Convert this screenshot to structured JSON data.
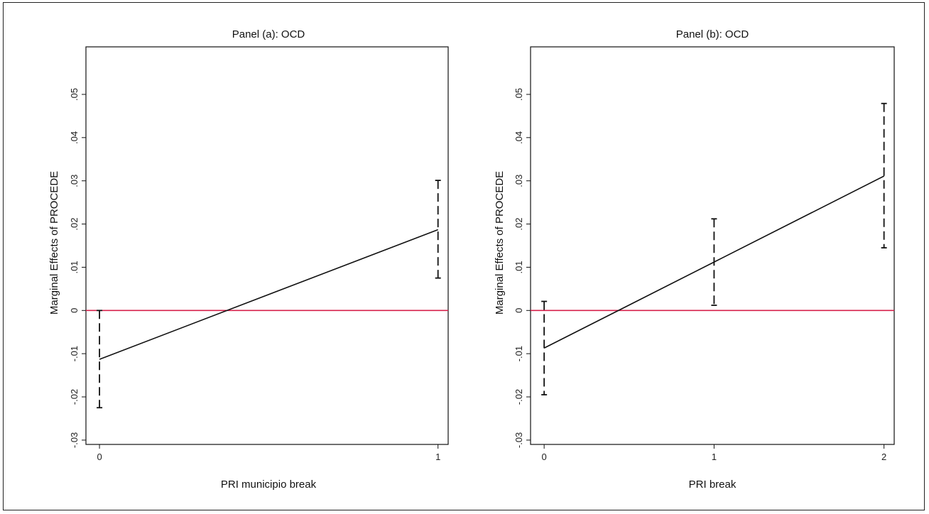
{
  "chart_data": [
    {
      "type": "line",
      "title": "Panel (a): OCD",
      "xlabel": "PRI municipio break",
      "ylabel": "Marginal Effects of PROCEDE",
      "x": [
        0,
        1
      ],
      "x_ticks": [
        "0",
        "1"
      ],
      "xlim": [
        -0.04,
        1.03
      ],
      "ylim": [
        -0.031,
        0.061
      ],
      "y_ticks": [
        "-.03",
        "-.02",
        "-.01",
        "0",
        ".01",
        ".02",
        ".03",
        ".04",
        ".05"
      ],
      "y_tick_values": [
        -0.03,
        -0.02,
        -0.01,
        0,
        0.01,
        0.02,
        0.03,
        0.04,
        0.05
      ],
      "series": [
        {
          "values": [
            -0.0113,
            0.0187
          ],
          "ci_lower": [
            -0.0225,
            0.0075
          ],
          "ci_upper": [
            0.0,
            0.0301
          ]
        }
      ],
      "reference_line": {
        "y": 0,
        "color": "#d6204b"
      },
      "grid": false
    },
    {
      "type": "line",
      "title": "Panel (b): OCD",
      "xlabel": "PRI break",
      "ylabel": "Marginal Effects of PROCEDE",
      "x": [
        0,
        1,
        2
      ],
      "x_ticks": [
        "0",
        "1",
        "2"
      ],
      "xlim": [
        -0.08,
        2.06
      ],
      "ylim": [
        -0.031,
        0.061
      ],
      "y_ticks": [
        "-.03",
        "-.02",
        "-.01",
        "0",
        ".01",
        ".02",
        ".03",
        ".04",
        ".05"
      ],
      "y_tick_values": [
        -0.03,
        -0.02,
        -0.01,
        0,
        0.01,
        0.02,
        0.03,
        0.04,
        0.05
      ],
      "series": [
        {
          "values": [
            -0.0087,
            0.0112,
            0.0311
          ],
          "ci_lower": [
            -0.0195,
            0.0012,
            0.0145
          ],
          "ci_upper": [
            0.0021,
            0.0212,
            0.0479
          ]
        }
      ],
      "reference_line": {
        "y": 0,
        "color": "#d6204b"
      },
      "grid": false
    }
  ]
}
